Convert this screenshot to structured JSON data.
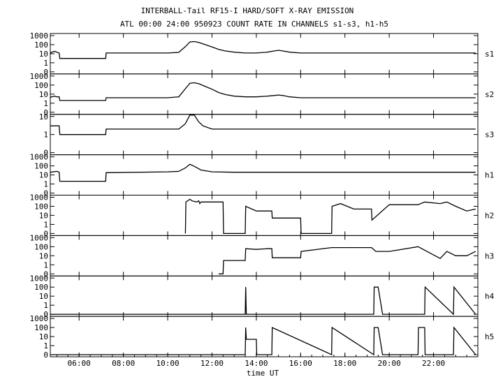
{
  "chart_data": {
    "type": "line",
    "title": "INTERBALL-Tail RF15-I HARD/SOFT X-RAY EMISSION",
    "subtitle": "ATL 00:00 24:00 950923  COUNT RATE IN CHANNELS s1-s3, h1-h5",
    "xlabel": "time UT",
    "xlim": [
      4.7,
      24.0
    ],
    "x_ticks": [
      "06:00",
      "08:00",
      "10:00",
      "12:00",
      "14:00",
      "16:00",
      "18:00",
      "20:00",
      "22:00"
    ],
    "y_scale": "log",
    "y_ticks_standard": [
      "1000",
      "100",
      "10",
      "1",
      "0"
    ],
    "y_ticks_s3": [
      "10",
      "1",
      "0"
    ],
    "panels": [
      {
        "name": "s1",
        "series": {
          "x": [
            4.7,
            4.75,
            4.9,
            5.0,
            5.08,
            5.1,
            5.13,
            5.15,
            7.2,
            7.22,
            7.3,
            10.0,
            10.5,
            10.8,
            11.0,
            11.2,
            11.4,
            11.7,
            12.0,
            12.3,
            12.6,
            13.0,
            13.5,
            14.0,
            14.5,
            14.8,
            15.0,
            15.2,
            15.5,
            16.0,
            17.0,
            18.0,
            20.0,
            22.0,
            23.9
          ],
          "y": [
            10,
            14,
            18,
            15,
            12,
            12,
            3,
            3,
            3,
            12,
            12,
            12,
            14,
            60,
            200,
            220,
            180,
            100,
            55,
            30,
            20,
            15,
            12,
            12,
            15,
            20,
            24,
            20,
            15,
            12,
            12,
            12,
            12,
            12,
            12
          ]
        }
      },
      {
        "name": "s2",
        "series": {
          "x": [
            4.7,
            4.75,
            4.9,
            5.0,
            5.08,
            5.1,
            5.13,
            5.15,
            7.2,
            7.22,
            7.3,
            10.0,
            10.5,
            10.8,
            11.0,
            11.2,
            11.4,
            11.7,
            12.0,
            12.3,
            12.6,
            13.0,
            13.5,
            14.0,
            14.5,
            14.8,
            15.0,
            15.2,
            15.5,
            16.0,
            17.0,
            18.0,
            20.0,
            22.0,
            23.9
          ],
          "y": [
            4,
            5,
            6,
            5,
            5,
            5,
            2,
            2,
            2,
            4,
            4,
            4,
            5,
            40,
            160,
            180,
            140,
            70,
            35,
            15,
            9,
            6,
            5,
            5,
            6,
            7,
            8,
            7,
            5,
            4,
            4,
            4,
            4,
            4,
            4
          ]
        }
      },
      {
        "name": "s3",
        "series": {
          "x": [
            4.7,
            5.0,
            5.1,
            5.13,
            5.15,
            7.2,
            7.22,
            7.3,
            10.5,
            10.8,
            11.0,
            11.1,
            11.2,
            11.4,
            11.6,
            12.0,
            13.0,
            16.0,
            20.0,
            23.9
          ],
          "y": [
            3,
            3,
            3,
            0.8,
            0.8,
            0.8,
            2,
            2,
            2,
            4,
            15,
            18,
            12,
            5,
            3,
            2,
            2,
            2,
            2,
            2
          ]
        }
      },
      {
        "name": "h1",
        "series": {
          "x": [
            4.7,
            5.0,
            5.1,
            5.13,
            5.15,
            7.2,
            7.22,
            7.3,
            10.0,
            10.5,
            10.8,
            11.0,
            11.2,
            11.5,
            12.0,
            13.0,
            16.0,
            20.0,
            23.9
          ],
          "y": [
            20,
            25,
            20,
            2,
            2,
            2,
            18,
            18,
            22,
            25,
            60,
            150,
            90,
            35,
            22,
            20,
            20,
            20,
            20
          ]
        }
      },
      {
        "name": "h2",
        "series": {
          "x": [
            10.8,
            10.82,
            11.0,
            11.1,
            11.3,
            11.4,
            11.45,
            11.5,
            12.5,
            12.52,
            13.5,
            13.52,
            14.0,
            14.7,
            14.72,
            16.0,
            16.02,
            17.4,
            17.42,
            17.8,
            18.4,
            19.2,
            19.22,
            20.0,
            21.3,
            21.6,
            22.3,
            22.6,
            23.0,
            23.5,
            23.9
          ],
          "y": [
            0,
            300,
            600,
            400,
            300,
            400,
            200,
            300,
            300,
            0,
            0,
            100,
            30,
            30,
            5,
            5,
            0,
            0,
            100,
            200,
            50,
            50,
            3,
            150,
            150,
            300,
            200,
            300,
            100,
            30,
            50
          ]
        }
      },
      {
        "name": "h3",
        "series": {
          "x": [
            12.3,
            12.5,
            12.52,
            13.0,
            13.5,
            13.52,
            14.0,
            14.5,
            14.7,
            14.72,
            15.0,
            16.0,
            16.02,
            17.4,
            17.5,
            18.0,
            19.2,
            19.4,
            20.0,
            21.3,
            21.7,
            22.3,
            22.6,
            23.0,
            23.5,
            23.9
          ],
          "y": [
            0,
            0,
            3,
            3,
            3,
            60,
            50,
            60,
            60,
            6,
            6,
            6,
            30,
            80,
            80,
            80,
            80,
            30,
            30,
            100,
            30,
            5,
            30,
            10,
            10,
            30
          ]
        }
      },
      {
        "name": "h4",
        "series": {
          "x": [
            4.7,
            13.5,
            13.52,
            13.55,
            19.3,
            19.32,
            19.5,
            19.7,
            21.6,
            21.62,
            22.9,
            22.92,
            23.9
          ],
          "y": [
            0,
            0,
            100,
            0,
            0,
            100,
            100,
            0,
            0,
            100,
            0,
            100,
            0
          ]
        }
      },
      {
        "name": "h5",
        "series": {
          "x": [
            4.7,
            13.5,
            13.52,
            13.55,
            14.0,
            14.02,
            14.7,
            14.72,
            17.4,
            17.42,
            19.3,
            19.32,
            19.5,
            19.7,
            21.3,
            21.32,
            21.6,
            21.62,
            22.9,
            22.92,
            23.9
          ],
          "y": [
            0,
            0,
            100,
            5,
            5,
            0,
            0,
            100,
            0,
            100,
            0,
            100,
            100,
            0,
            0,
            100,
            100,
            0,
            0,
            100,
            0
          ]
        }
      }
    ]
  }
}
